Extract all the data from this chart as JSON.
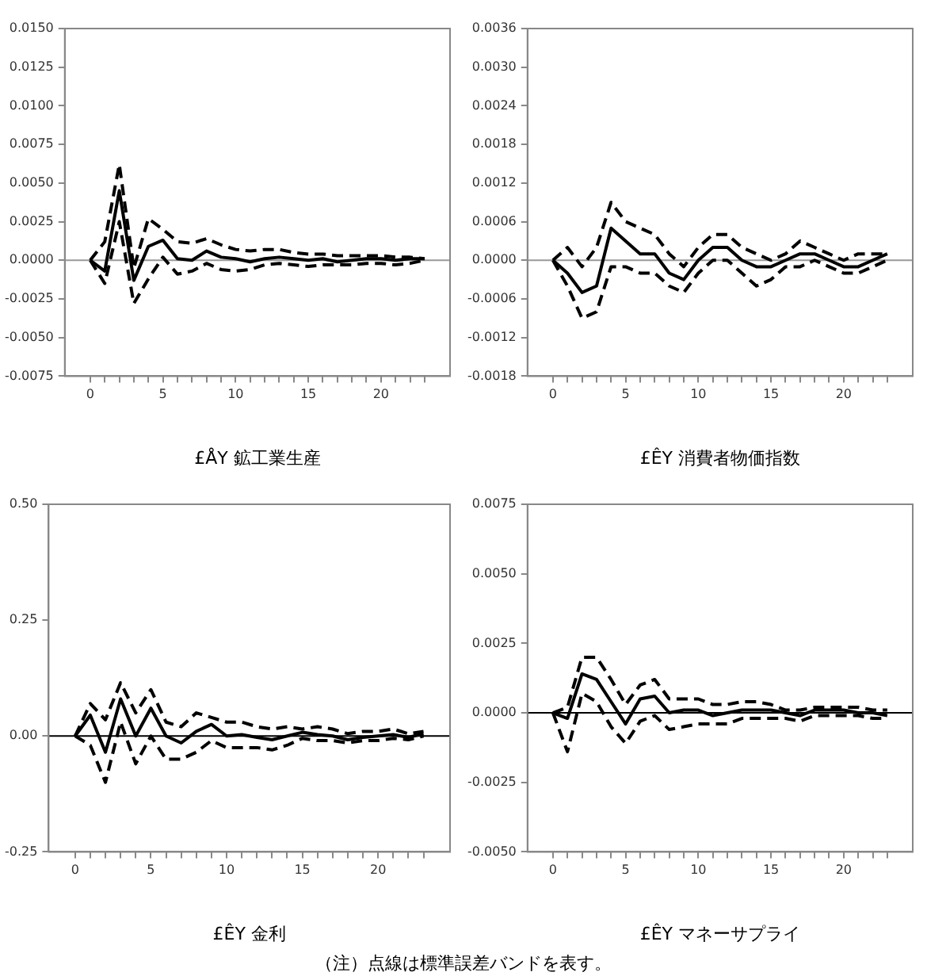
{
  "chart_data": [
    {
      "type": "line",
      "xlabel": "£ÅY 鉱工業生産",
      "x": [
        0,
        1,
        2,
        3,
        4,
        5,
        6,
        7,
        8,
        9,
        10,
        11,
        12,
        13,
        14,
        15,
        16,
        17,
        18,
        19,
        20,
        21,
        22,
        23
      ],
      "xlim": [
        -1.75,
        24.75
      ],
      "xticks": [
        0,
        {
          "value": 1,
          "label": null
        },
        {
          "value": 2,
          "label": null
        },
        {
          "value": 3,
          "label": null
        },
        {
          "value": 4,
          "label": null
        },
        5,
        {
          "value": 6,
          "label": null
        },
        {
          "value": 7,
          "label": null
        },
        {
          "value": 8,
          "label": null
        },
        {
          "value": 9,
          "label": null
        },
        10,
        {
          "value": 11,
          "label": null
        },
        {
          "value": 12,
          "label": null
        },
        {
          "value": 13,
          "label": null
        },
        {
          "value": 14,
          "label": null
        },
        15,
        {
          "value": 16,
          "label": null
        },
        {
          "value": 17,
          "label": null
        },
        {
          "value": 18,
          "label": null
        },
        {
          "value": 19,
          "label": null
        },
        20,
        {
          "value": 21,
          "label": null
        },
        {
          "value": 22,
          "label": null
        },
        {
          "value": 23,
          "label": null
        }
      ],
      "ylim": [
        -0.0075,
        0.015
      ],
      "yticks": [
        {
          "value": -0.0075,
          "label": "-0.0075"
        },
        {
          "value": -0.005,
          "label": "-0.0050"
        },
        {
          "value": -0.0025,
          "label": "-0.0025"
        },
        {
          "value": 0,
          "label": "0.0000"
        },
        {
          "value": 0.0025,
          "label": "0.0025"
        },
        {
          "value": 0.005,
          "label": "0.0050"
        },
        {
          "value": 0.0075,
          "label": "0.0075"
        },
        {
          "value": 0.01,
          "label": "0.0100"
        },
        {
          "value": 0.0125,
          "label": "0.0125"
        },
        {
          "value": 0.015,
          "label": "0.0150"
        }
      ],
      "grid": false,
      "marker": "none",
      "ref_lines": [
        {
          "axis": "y",
          "value": 0,
          "color": "#999999"
        }
      ],
      "series": [
        {
          "color": "#000000",
          "line_style": "solid",
          "values": [
            0,
            -0.0007,
            0.0045,
            -0.0013,
            0.0009,
            0.0013,
            0.0001,
            0,
            0.0006,
            0.0002,
            0.0001,
            -0.0001,
            0.0001,
            0.0002,
            0.0001,
            0,
            0.0001,
            -0.0001,
            0,
            0.0001,
            0.0001,
            0,
            0.0001,
            0.0001
          ]
        },
        {
          "color": "#000000",
          "line_style": "dashed",
          "values": [
            0,
            0.0012,
            0.0062,
            -0.0005,
            0.0027,
            0.002,
            0.0012,
            0.0011,
            0.0014,
            0.001,
            0.0007,
            0.0006,
            0.0007,
            0.0007,
            0.0005,
            0.0004,
            0.0004,
            0.0003,
            0.0003,
            0.0003,
            0.0003,
            0.0002,
            0.0002,
            0.0001
          ]
        },
        {
          "color": "#000000",
          "line_style": "dashed",
          "values": [
            0,
            -0.0015,
            0.0025,
            -0.0028,
            -0.0012,
            0.0002,
            -0.0009,
            -0.0007,
            -0.0002,
            -0.0006,
            -0.0007,
            -0.0006,
            -0.0003,
            -0.0002,
            -0.0003,
            -0.0004,
            -0.0003,
            -0.0003,
            -0.0003,
            -0.0002,
            -0.0002,
            -0.0003,
            -0.0002,
            0
          ]
        }
      ]
    },
    {
      "type": "line",
      "xlabel": "£ÊY 消費者物価指数",
      "x": [
        0,
        1,
        2,
        3,
        4,
        5,
        6,
        7,
        8,
        9,
        10,
        11,
        12,
        13,
        14,
        15,
        16,
        17,
        18,
        19,
        20,
        21,
        22,
        23
      ],
      "xlim": [
        -1.75,
        24.75
      ],
      "xticks": [
        0,
        {
          "value": 1,
          "label": null
        },
        {
          "value": 2,
          "label": null
        },
        {
          "value": 3,
          "label": null
        },
        {
          "value": 4,
          "label": null
        },
        5,
        {
          "value": 6,
          "label": null
        },
        {
          "value": 7,
          "label": null
        },
        {
          "value": 8,
          "label": null
        },
        {
          "value": 9,
          "label": null
        },
        10,
        {
          "value": 11,
          "label": null
        },
        {
          "value": 12,
          "label": null
        },
        {
          "value": 13,
          "label": null
        },
        {
          "value": 14,
          "label": null
        },
        15,
        {
          "value": 16,
          "label": null
        },
        {
          "value": 17,
          "label": null
        },
        {
          "value": 18,
          "label": null
        },
        {
          "value": 19,
          "label": null
        },
        20,
        {
          "value": 21,
          "label": null
        },
        {
          "value": 22,
          "label": null
        },
        {
          "value": 23,
          "label": null
        }
      ],
      "ylim": [
        -0.0018,
        0.0036
      ],
      "yticks": [
        {
          "value": -0.0018,
          "label": "-0.0018"
        },
        {
          "value": -0.0012,
          "label": "-0.0012"
        },
        {
          "value": -0.0006,
          "label": "-0.0006"
        },
        {
          "value": 0,
          "label": "0.0000"
        },
        {
          "value": 0.0006,
          "label": "0.0006"
        },
        {
          "value": 0.0012,
          "label": "0.0012"
        },
        {
          "value": 0.0018,
          "label": "0.0018"
        },
        {
          "value": 0.0024,
          "label": "0.0024"
        },
        {
          "value": 0.003,
          "label": "0.0030"
        },
        {
          "value": 0.0036,
          "label": "0.0036"
        }
      ],
      "grid": false,
      "marker": "none",
      "ref_lines": [
        {
          "axis": "y",
          "value": 0,
          "color": "#999999"
        }
      ],
      "series": [
        {
          "color": "#000000",
          "line_style": "solid",
          "values": [
            0,
            -0.0002,
            -0.0005,
            -0.0004,
            0.0005,
            0.0003,
            0.0001,
            0.0001,
            -0.0002,
            -0.0003,
            0,
            0.0002,
            0.0002,
            0,
            -0.0001,
            -0.0001,
            0,
            0.0001,
            0.0001,
            0,
            -0.0001,
            -0.0001,
            0,
            0.0001
          ]
        },
        {
          "color": "#000000",
          "line_style": "dashed",
          "values": [
            0,
            0.0002,
            -0.0001,
            0.0002,
            0.0009,
            0.0006,
            0.0005,
            0.0004,
            0.0001,
            -0.0001,
            0.0002,
            0.0004,
            0.0004,
            0.0002,
            0.0001,
            0,
            0.0001,
            0.0003,
            0.0002,
            0.0001,
            0,
            0.0001,
            0.0001,
            0.0001
          ]
        },
        {
          "color": "#000000",
          "line_style": "dashed",
          "values": [
            0,
            -0.0004,
            -0.0009,
            -0.0008,
            -0.0001,
            -0.0001,
            -0.0002,
            -0.0002,
            -0.0004,
            -0.0005,
            -0.0002,
            0,
            0,
            -0.0002,
            -0.0004,
            -0.0003,
            -0.0001,
            -0.0001,
            0,
            -0.0001,
            -0.0002,
            -0.0002,
            -0.0001,
            0
          ]
        }
      ]
    },
    {
      "type": "line",
      "xlabel": "£ÊY 金利",
      "x": [
        0,
        1,
        2,
        3,
        4,
        5,
        6,
        7,
        8,
        9,
        10,
        11,
        12,
        13,
        14,
        15,
        16,
        17,
        18,
        19,
        20,
        21,
        22,
        23
      ],
      "xlim": [
        -1.75,
        24.75
      ],
      "xticks": [
        0,
        {
          "value": 1,
          "label": null
        },
        {
          "value": 2,
          "label": null
        },
        {
          "value": 3,
          "label": null
        },
        {
          "value": 4,
          "label": null
        },
        5,
        {
          "value": 6,
          "label": null
        },
        {
          "value": 7,
          "label": null
        },
        {
          "value": 8,
          "label": null
        },
        {
          "value": 9,
          "label": null
        },
        10,
        {
          "value": 11,
          "label": null
        },
        {
          "value": 12,
          "label": null
        },
        {
          "value": 13,
          "label": null
        },
        {
          "value": 14,
          "label": null
        },
        15,
        {
          "value": 16,
          "label": null
        },
        {
          "value": 17,
          "label": null
        },
        {
          "value": 18,
          "label": null
        },
        {
          "value": 19,
          "label": null
        },
        20,
        {
          "value": 21,
          "label": null
        },
        {
          "value": 22,
          "label": null
        },
        {
          "value": 23,
          "label": null
        }
      ],
      "ylim": [
        -0.25,
        0.5
      ],
      "yticks": [
        {
          "value": -0.25,
          "label": "-0.25"
        },
        {
          "value": 0,
          "label": "0.00"
        },
        {
          "value": 0.25,
          "label": "0.25"
        },
        {
          "value": 0.5,
          "label": "0.50"
        }
      ],
      "grid": false,
      "marker": "none",
      "ref_lines": [
        {
          "axis": "y",
          "value": 0,
          "color": "#000000"
        }
      ],
      "series": [
        {
          "color": "#000000",
          "line_style": "solid",
          "values": [
            0,
            0.045,
            -0.035,
            0.08,
            0,
            0.06,
            0,
            -0.015,
            0.01,
            0.025,
            0,
            0.003,
            -0.003,
            -0.008,
            0,
            0.008,
            0.003,
            0,
            -0.008,
            -0.003,
            0,
            0.003,
            -0.003,
            0.005
          ]
        },
        {
          "color": "#000000",
          "line_style": "dashed",
          "values": [
            0,
            0.07,
            0.035,
            0.115,
            0.05,
            0.1,
            0.03,
            0.02,
            0.05,
            0.04,
            0.03,
            0.03,
            0.02,
            0.015,
            0.02,
            0.015,
            0.02,
            0.015,
            0.005,
            0.01,
            0.01,
            0.015,
            0.005,
            0.01
          ]
        },
        {
          "color": "#000000",
          "line_style": "dashed",
          "values": [
            0,
            -0.02,
            -0.1,
            0.03,
            -0.06,
            0,
            -0.05,
            -0.05,
            -0.035,
            -0.01,
            -0.025,
            -0.025,
            -0.025,
            -0.03,
            -0.02,
            -0.005,
            -0.01,
            -0.01,
            -0.015,
            -0.01,
            -0.01,
            -0.005,
            -0.008,
            0
          ]
        }
      ]
    },
    {
      "type": "line",
      "xlabel": "£ÊY マネーサプライ",
      "annotations": [
        "（注）点線は標準誤差バンドを表す。"
      ],
      "x": [
        0,
        1,
        2,
        3,
        4,
        5,
        6,
        7,
        8,
        9,
        10,
        11,
        12,
        13,
        14,
        15,
        16,
        17,
        18,
        19,
        20,
        21,
        22,
        23
      ],
      "xlim": [
        -1.75,
        24.75
      ],
      "xticks": [
        0,
        {
          "value": 1,
          "label": null
        },
        {
          "value": 2,
          "label": null
        },
        {
          "value": 3,
          "label": null
        },
        {
          "value": 4,
          "label": null
        },
        5,
        {
          "value": 6,
          "label": null
        },
        {
          "value": 7,
          "label": null
        },
        {
          "value": 8,
          "label": null
        },
        {
          "value": 9,
          "label": null
        },
        10,
        {
          "value": 11,
          "label": null
        },
        {
          "value": 12,
          "label": null
        },
        {
          "value": 13,
          "label": null
        },
        {
          "value": 14,
          "label": null
        },
        15,
        {
          "value": 16,
          "label": null
        },
        {
          "value": 17,
          "label": null
        },
        {
          "value": 18,
          "label": null
        },
        {
          "value": 19,
          "label": null
        },
        20,
        {
          "value": 21,
          "label": null
        },
        {
          "value": 22,
          "label": null
        },
        {
          "value": 23,
          "label": null
        }
      ],
      "ylim": [
        -0.005,
        0.0075
      ],
      "yticks": [
        {
          "value": -0.005,
          "label": "-0.0050"
        },
        {
          "value": -0.0025,
          "label": "-0.0025"
        },
        {
          "value": 0,
          "label": "0.0000"
        },
        {
          "value": 0.0025,
          "label": "0.0025"
        },
        {
          "value": 0.005,
          "label": "0.0050"
        },
        {
          "value": 0.0075,
          "label": "0.0075"
        }
      ],
      "grid": false,
      "marker": "none",
      "ref_lines": [
        {
          "axis": "y",
          "value": 0,
          "color": "#000000"
        }
      ],
      "series": [
        {
          "color": "#000000",
          "line_style": "solid",
          "values": [
            0,
            -0.0002,
            0.0014,
            0.0012,
            0.0004,
            -0.0004,
            0.0005,
            0.0006,
            0,
            0.0001,
            0.0001,
            -0.0001,
            0,
            0.0001,
            0.0001,
            0.0001,
            0,
            -0.0001,
            0.0001,
            0.0001,
            0.0001,
            0,
            0,
            -0.0001
          ]
        },
        {
          "color": "#000000",
          "line_style": "dashed",
          "values": [
            0,
            0.0002,
            0.002,
            0.002,
            0.0012,
            0.0003,
            0.001,
            0.0012,
            0.0005,
            0.0005,
            0.0005,
            0.0003,
            0.0003,
            0.0004,
            0.0004,
            0.0003,
            0.0001,
            0.0001,
            0.0002,
            0.0002,
            0.0002,
            0.0002,
            0.0001,
            0.0001
          ]
        },
        {
          "color": "#000000",
          "line_style": "dashed",
          "values": [
            0,
            -0.0014,
            0.0007,
            0.0004,
            -0.0005,
            -0.0011,
            -0.0003,
            -0.0001,
            -0.0006,
            -0.0005,
            -0.0004,
            -0.0004,
            -0.0004,
            -0.0002,
            -0.0002,
            -0.0002,
            -0.0002,
            -0.0003,
            -0.0001,
            -0.0001,
            -0.0001,
            -0.0001,
            -0.0002,
            -0.0002
          ]
        }
      ]
    }
  ]
}
